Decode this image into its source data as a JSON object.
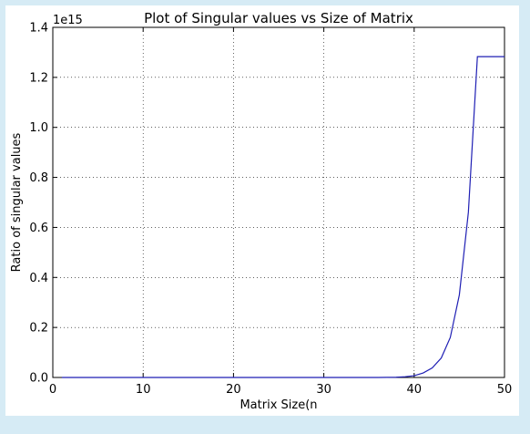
{
  "chart_data": {
    "type": "line",
    "title": "Plot of Singular values vs Size of Matrix",
    "xlabel": "Matrix Size(n",
    "ylabel": "Ratio of singular values",
    "y_offset_label": "1e15",
    "xlim": [
      0,
      50
    ],
    "ylim": [
      0,
      1.4
    ],
    "grid": true,
    "xticks": [
      0,
      10,
      20,
      30,
      40,
      50
    ],
    "yticks": [
      0.0,
      0.2,
      0.4,
      0.6,
      0.8,
      1.0,
      1.2,
      1.4
    ],
    "xtick_labels": [
      "0",
      "10",
      "20",
      "30",
      "40",
      "50"
    ],
    "ytick_labels": [
      "0.0",
      "0.2",
      "0.4",
      "0.6",
      "0.8",
      "1.0",
      "1.2",
      "1.4"
    ],
    "line_color": "#1f1fb4",
    "series": [
      {
        "x": [
          1,
          2,
          3,
          4,
          5,
          6,
          7,
          8,
          9,
          10,
          11,
          12,
          13,
          14,
          15,
          16,
          17,
          18,
          19,
          20,
          21,
          22,
          23,
          24,
          25,
          26,
          27,
          28,
          29,
          30,
          31,
          32,
          33,
          34,
          35,
          36,
          37,
          38,
          39,
          40,
          41,
          42,
          43,
          44,
          45,
          46,
          47,
          48,
          49,
          50
        ],
        "y": [
          0,
          0,
          0,
          0,
          0,
          0,
          0,
          0,
          0,
          0,
          0,
          0,
          0,
          0,
          0,
          0,
          0,
          0,
          0,
          0,
          0,
          0,
          0,
          0,
          0,
          0,
          0,
          0,
          0,
          0,
          0,
          0,
          0,
          0,
          0,
          0,
          0.0005,
          0.001,
          0.003,
          0.007,
          0.018,
          0.038,
          0.078,
          0.16,
          0.33,
          0.66,
          1.283,
          1.283,
          1.283,
          1.283
        ]
      }
    ]
  }
}
